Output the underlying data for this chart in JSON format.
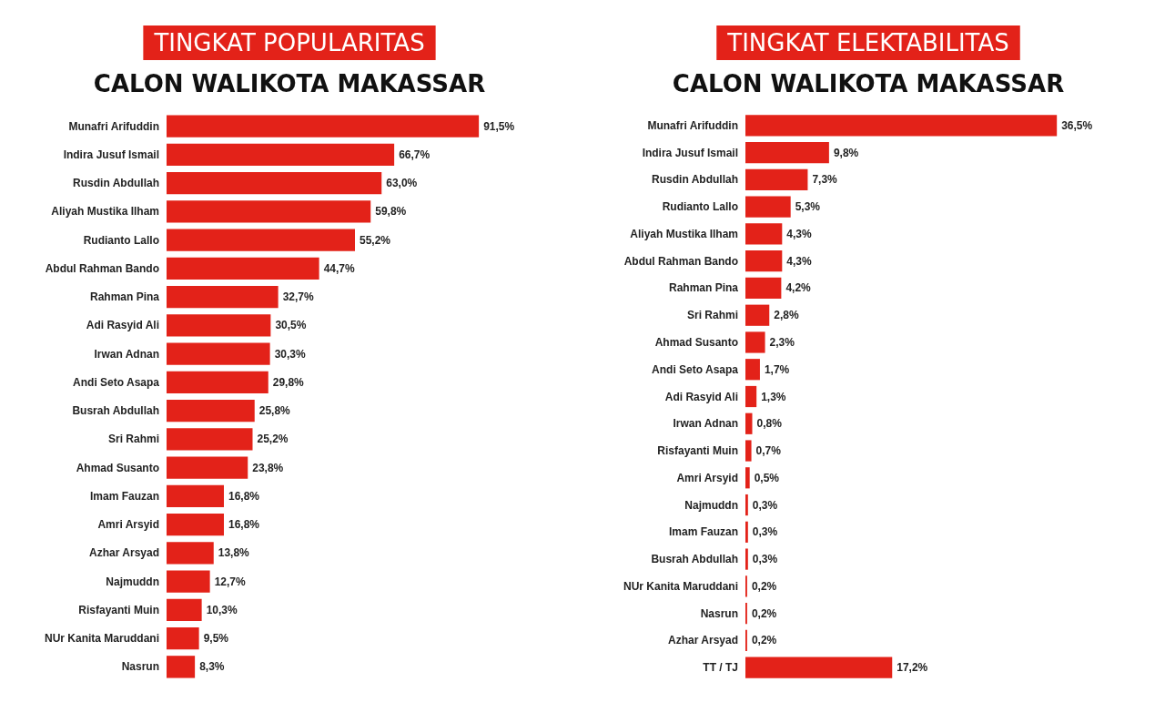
{
  "chart_data": [
    {
      "type": "bar",
      "orientation": "horizontal",
      "title": "TINGKAT POPULARITAS",
      "subtitle": "CALON WALIKOTA MAKASSAR",
      "color": "#e32219",
      "categories": [
        "Munafri Arifuddin",
        "Indira Jusuf Ismail",
        "Rusdin Abdullah",
        "Aliyah Mustika Ilham",
        "Rudianto Lallo",
        "Abdul Rahman Bando",
        "Rahman Pina",
        "Adi Rasyid Ali",
        "Irwan Adnan",
        "Andi Seto Asapa",
        "Busrah Abdullah",
        "Sri Rahmi",
        "Ahmad Susanto",
        "Imam Fauzan",
        "Amri Arsyid",
        "Azhar Arsyad",
        "Najmuddn",
        "Risfayanti Muin",
        "NUr Kanita Maruddani",
        "Nasrun"
      ],
      "values": [
        91.5,
        66.7,
        63.0,
        59.8,
        55.2,
        44.7,
        32.7,
        30.5,
        30.3,
        29.8,
        25.8,
        25.2,
        23.8,
        16.8,
        16.8,
        13.8,
        12.7,
        10.3,
        9.5,
        8.3
      ],
      "value_labels": [
        "91,5%",
        "66,7%",
        "63,0%",
        "59,8%",
        "55,2%",
        "44,7%",
        "32,7%",
        "30,5%",
        "30,3%",
        "29,8%",
        "25,8%",
        "25,2%",
        "23,8%",
        "16,8%",
        "16,8%",
        "13,8%",
        "12,7%",
        "10,3%",
        "9,5%",
        "8,3%"
      ]
    },
    {
      "type": "bar",
      "orientation": "horizontal",
      "title": "TINGKAT ELEKTABILITAS",
      "subtitle": "CALON WALIKOTA MAKASSAR",
      "color": "#e32219",
      "categories": [
        "Munafri Arifuddin",
        "Indira Jusuf Ismail",
        "Rusdin Abdullah",
        "Rudianto Lallo",
        "Aliyah Mustika Ilham",
        "Abdul Rahman Bando",
        "Rahman Pina",
        "Sri Rahmi",
        "Ahmad Susanto",
        "Andi Seto Asapa",
        "Adi Rasyid Ali",
        "Irwan Adnan",
        "Risfayanti Muin",
        "Amri Arsyid",
        "Najmuddn",
        "Imam Fauzan",
        "Busrah Abdullah",
        "NUr Kanita Maruddani",
        "Nasrun",
        "Azhar Arsyad",
        "TT / TJ"
      ],
      "values": [
        36.5,
        9.8,
        7.3,
        5.3,
        4.3,
        4.3,
        4.2,
        2.8,
        2.3,
        1.7,
        1.3,
        0.8,
        0.7,
        0.5,
        0.3,
        0.3,
        0.3,
        0.2,
        0.2,
        0.2,
        17.2
      ],
      "value_labels": [
        "36,5%",
        "9,8%",
        "7,3%",
        "5,3%",
        "4,3%",
        "4,3%",
        "4,2%",
        "2,8%",
        "2,3%",
        "1,7%",
        "1,3%",
        "0,8%",
        "0,7%",
        "0,5%",
        "0,3%",
        "0,3%",
        "0,3%",
        "0,2%",
        "0,2%",
        "0,2%",
        "17,2%"
      ]
    }
  ]
}
